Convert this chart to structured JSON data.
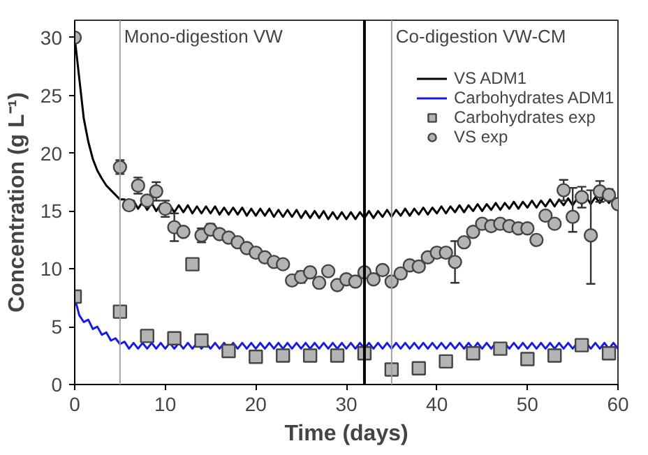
{
  "chart_data": {
    "type": "line",
    "xlabel": "Time (days)",
    "ylabel": "Concentration (g L⁻¹)",
    "xlim": [
      0,
      60
    ],
    "ylim": [
      0,
      31.5
    ],
    "xticks": [
      0,
      10,
      20,
      30,
      40,
      50,
      60
    ],
    "yticks": [
      0,
      5,
      10,
      15,
      20,
      25,
      30
    ],
    "grid": false,
    "legend": "top right",
    "ref_lines": [
      {
        "axis": "x",
        "value": 5,
        "label": "Mono-digestion VW",
        "color": "#a0a0a0"
      },
      {
        "axis": "x",
        "value": 32,
        "label": null,
        "color": "#000000"
      },
      {
        "axis": "x",
        "value": 35,
        "label": "Co-digestion VW-CM",
        "color": "#a0a0a0"
      }
    ],
    "series": [
      {
        "name": "VS ADM1",
        "color": "#000000",
        "marker": "none",
        "x": [
          0,
          0.5,
          1,
          1.5,
          2,
          2.5,
          3,
          3.5,
          4,
          4.5,
          5,
          5.5,
          6,
          6.5,
          7,
          7.5,
          8,
          8.5,
          9,
          9.5,
          10,
          10.5,
          11,
          11.5,
          12,
          12.5,
          13,
          13.5,
          14,
          14.5,
          15,
          15.5,
          16,
          16.5,
          17,
          17.5,
          18,
          18.5,
          19,
          19.5,
          20,
          20.5,
          21,
          21.5,
          22,
          22.5,
          23,
          23.5,
          24,
          24.5,
          25,
          25.5,
          26,
          26.5,
          27,
          27.5,
          28,
          28.5,
          29,
          29.5,
          30,
          30.5,
          31,
          31.5,
          32,
          32.5,
          33,
          33.5,
          34,
          34.5,
          35,
          35.5,
          36,
          36.5,
          37,
          37.5,
          38,
          38.5,
          39,
          39.5,
          40,
          40.5,
          41,
          41.5,
          42,
          42.5,
          43,
          43.5,
          44,
          44.5,
          45,
          45.5,
          46,
          46.5,
          47,
          47.5,
          48,
          48.5,
          49,
          49.5,
          50,
          50.5,
          51,
          51.5,
          52,
          52.5,
          53,
          53.5,
          54,
          54.5,
          55,
          55.5,
          56,
          56.5,
          57,
          57.5,
          58,
          58.5,
          59,
          59.5,
          60
        ],
        "values": [
          30,
          26.5,
          23,
          21,
          19.5,
          18.5,
          17.8,
          17.2,
          16.8,
          16.4,
          16.0,
          16.0,
          15.3,
          15.9,
          15.2,
          15.8,
          15.1,
          15.7,
          15.0,
          15.6,
          14.9,
          15.5,
          14.9,
          15.5,
          14.9,
          15.5,
          14.8,
          15.4,
          14.8,
          15.4,
          14.8,
          15.4,
          14.7,
          15.3,
          14.7,
          15.3,
          14.7,
          15.3,
          14.6,
          15.2,
          14.6,
          15.2,
          14.6,
          15.2,
          14.5,
          15.1,
          14.5,
          15.1,
          14.5,
          15.1,
          14.4,
          15.0,
          14.4,
          15.0,
          14.4,
          15.0,
          14.3,
          14.9,
          14.3,
          14.9,
          14.3,
          14.9,
          14.3,
          14.9,
          14.4,
          15.0,
          14.4,
          15.0,
          14.5,
          15.1,
          14.5,
          15.1,
          14.6,
          15.2,
          14.6,
          15.2,
          14.7,
          15.3,
          14.7,
          15.3,
          14.8,
          15.4,
          14.8,
          15.4,
          14.9,
          15.5,
          14.9,
          15.5,
          15.0,
          15.6,
          15.0,
          15.6,
          15.1,
          15.7,
          15.1,
          15.7,
          15.2,
          15.8,
          15.2,
          15.8,
          15.3,
          15.9,
          15.3,
          15.9,
          15.4,
          16.0,
          15.4,
          16.0,
          15.5,
          16.1,
          15.5,
          16.1,
          15.6,
          16.2,
          15.6,
          16.2,
          15.7,
          16.3,
          15.7,
          16.3,
          15.8
        ]
      },
      {
        "name": "Carbohydrates ADM1",
        "color": "#1a1ae6",
        "marker": "none",
        "x": [
          0,
          0.5,
          1,
          1.5,
          2,
          2.5,
          3,
          3.5,
          4,
          4.5,
          5,
          5.5,
          6,
          6.5,
          7,
          7.5,
          8,
          8.5,
          9,
          9.5,
          10,
          10.5,
          11,
          11.5,
          12,
          12.5,
          13,
          13.5,
          14,
          14.5,
          15,
          15.5,
          16,
          16.5,
          17,
          17.5,
          18,
          18.5,
          19,
          19.5,
          20,
          20.5,
          21,
          21.5,
          22,
          22.5,
          23,
          23.5,
          24,
          24.5,
          25,
          25.5,
          26,
          26.5,
          27,
          27.5,
          28,
          28.5,
          29,
          29.5,
          30,
          30.5,
          31,
          31.5,
          32,
          32.5,
          33,
          33.5,
          34,
          34.5,
          35,
          35.5,
          36,
          36.5,
          37,
          37.5,
          38,
          38.5,
          39,
          39.5,
          40,
          40.5,
          41,
          41.5,
          42,
          42.5,
          43,
          43.5,
          44,
          44.5,
          45,
          45.5,
          46,
          46.5,
          47,
          47.5,
          48,
          48.5,
          49,
          49.5,
          50,
          50.5,
          51,
          51.5,
          52,
          52.5,
          53,
          53.5,
          54,
          54.5,
          55,
          55.5,
          56,
          56.5,
          57,
          57.5,
          58,
          58.5,
          59,
          59.5,
          60
        ],
        "values": [
          7.5,
          6.0,
          5.4,
          5.6,
          4.8,
          5.0,
          4.3,
          4.5,
          3.8,
          4.0,
          3.5,
          3.7,
          3.1,
          3.6,
          3.1,
          3.6,
          3.1,
          3.6,
          3.1,
          3.6,
          3.1,
          3.6,
          3.1,
          3.6,
          3.1,
          3.6,
          3.1,
          3.6,
          3.1,
          3.6,
          3.1,
          3.6,
          3.1,
          3.6,
          3.1,
          3.6,
          3.1,
          3.6,
          3.1,
          3.6,
          3.1,
          3.6,
          3.1,
          3.6,
          3.1,
          3.6,
          3.1,
          3.6,
          3.1,
          3.6,
          3.1,
          3.6,
          3.1,
          3.6,
          3.1,
          3.6,
          3.1,
          3.6,
          3.1,
          3.6,
          3.1,
          3.6,
          3.1,
          3.6,
          3.1,
          3.6,
          3.1,
          3.6,
          3.1,
          3.6,
          3.1,
          3.6,
          3.1,
          3.6,
          3.1,
          3.6,
          3.1,
          3.6,
          3.1,
          3.6,
          3.1,
          3.6,
          3.1,
          3.6,
          3.1,
          3.6,
          3.1,
          3.6,
          3.1,
          3.6,
          3.1,
          3.6,
          3.1,
          3.6,
          3.1,
          3.6,
          3.1,
          3.6,
          3.1,
          3.6,
          3.1,
          3.6,
          3.1,
          3.6,
          3.1,
          3.6,
          3.1,
          3.6,
          3.1,
          3.6,
          3.1,
          3.6,
          3.1,
          3.6,
          3.1,
          3.6,
          3.1,
          3.6,
          3.1,
          3.6,
          3.1
        ]
      },
      {
        "name": "Carbohydrates exp",
        "type": "scatter",
        "color": "#b4b4b4",
        "marker": "square",
        "x": [
          0,
          5,
          8,
          11,
          13,
          14,
          17,
          20,
          23,
          26,
          29,
          32,
          35,
          38,
          41,
          44,
          47,
          50,
          53,
          56,
          59
        ],
        "values": [
          7.6,
          6.3,
          4.2,
          4.0,
          10.4,
          3.8,
          2.9,
          2.4,
          2.5,
          2.5,
          2.5,
          2.7,
          1.3,
          1.4,
          2.0,
          2.7,
          3.1,
          2.2,
          2.5,
          3.4,
          2.7
        ]
      },
      {
        "name": "VS exp",
        "type": "scatter",
        "color": "#b4b4b4",
        "marker": "circle",
        "x": [
          0,
          5,
          6,
          7,
          8,
          9,
          10,
          11,
          12,
          14,
          15,
          16,
          17,
          18,
          19,
          20,
          21,
          22,
          23,
          24,
          25,
          26,
          27,
          28,
          29,
          30,
          31,
          32,
          33,
          34,
          35,
          36,
          37,
          38,
          39,
          40,
          41,
          42,
          43,
          44,
          45,
          46,
          47,
          48,
          49,
          50,
          51,
          52,
          53,
          54,
          55,
          56,
          57,
          58,
          59,
          60
        ],
        "values": [
          30,
          18.8,
          15.5,
          17.2,
          15.9,
          16.7,
          15.2,
          13.6,
          13.2,
          12.9,
          13.4,
          13.0,
          12.7,
          12.3,
          11.8,
          11.4,
          11.0,
          10.6,
          10.4,
          9.0,
          9.3,
          9.7,
          8.8,
          9.8,
          8.6,
          9.1,
          8.9,
          9.7,
          9.1,
          9.9,
          8.9,
          9.6,
          10.3,
          10.2,
          11.0,
          11.4,
          11.4,
          10.6,
          12.3,
          13.2,
          13.9,
          13.7,
          13.9,
          13.7,
          13.5,
          13.5,
          12.5,
          14.6,
          13.9,
          16.8,
          14.5,
          16.2,
          12.9,
          16.7,
          16.4,
          15.6
        ],
        "errors": [
          null,
          0.6,
          null,
          0.7,
          null,
          0.8,
          0.7,
          1.2,
          null,
          0.6,
          0.5,
          null,
          null,
          null,
          0.4,
          null,
          null,
          null,
          null,
          null,
          0.5,
          null,
          null,
          null,
          null,
          null,
          null,
          null,
          null,
          null,
          null,
          null,
          null,
          null,
          null,
          null,
          null,
          1.8,
          null,
          null,
          0.4,
          null,
          0.4,
          null,
          null,
          null,
          null,
          null,
          null,
          0.9,
          [
            13.2,
            17.0
          ],
          0.9,
          [
            8.7,
            16.8
          ],
          0.9,
          0.5,
          null
        ]
      }
    ]
  }
}
